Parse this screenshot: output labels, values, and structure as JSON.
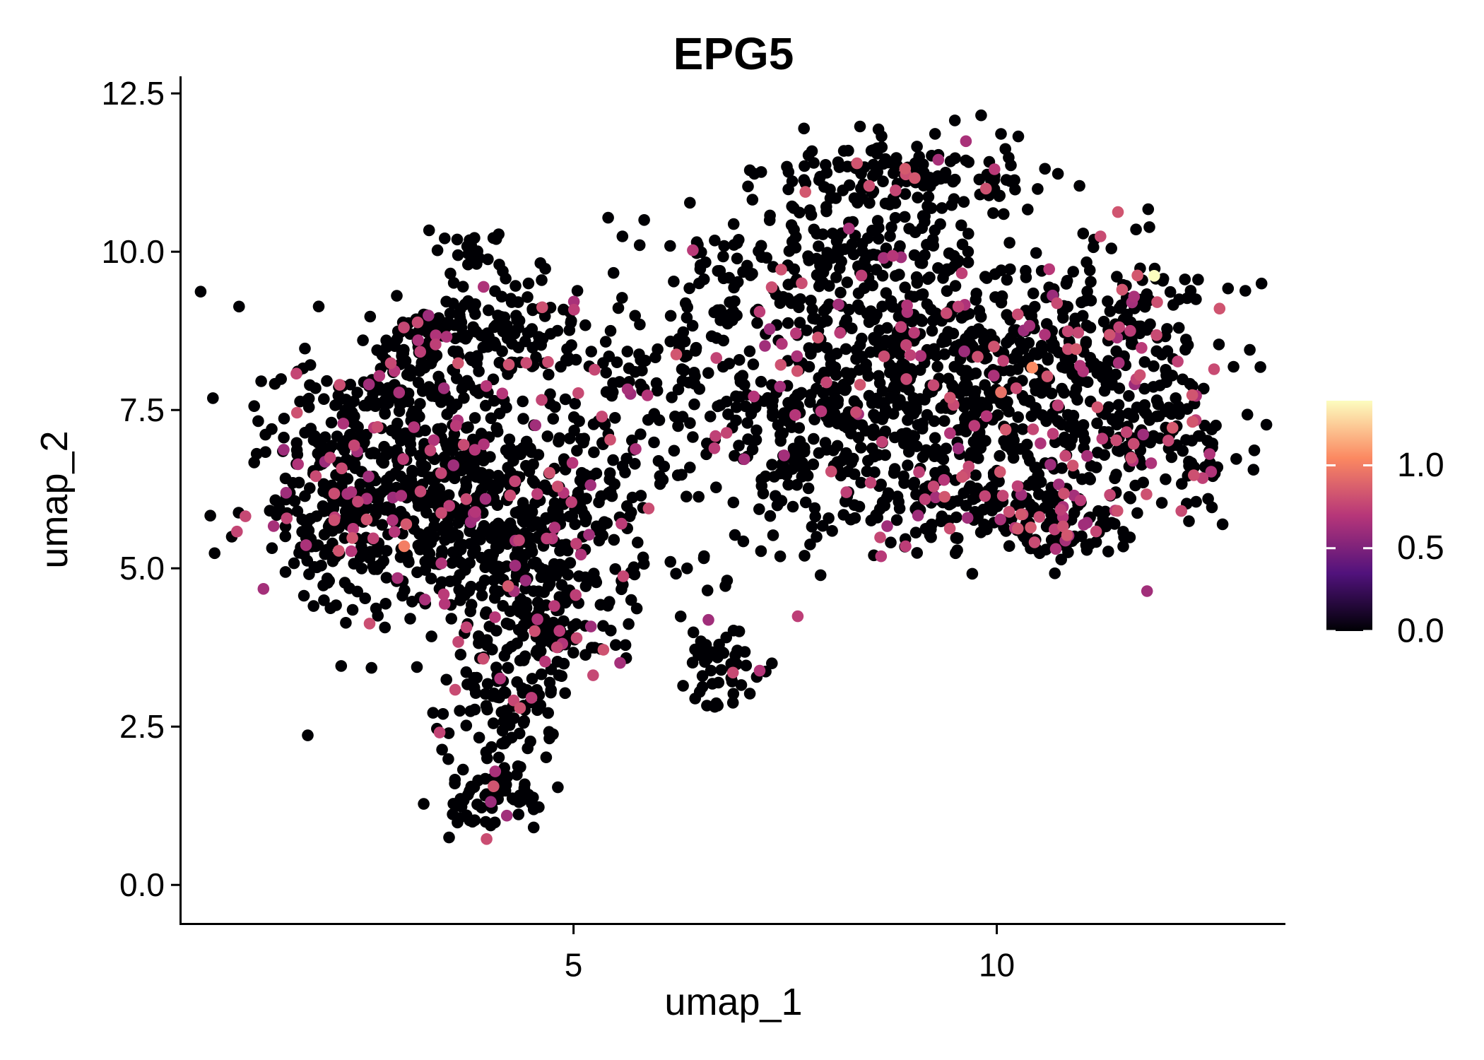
{
  "figure": {
    "title": "EPG5",
    "background": "#ffffff",
    "axis_color": "#000000",
    "text_color": "#000000"
  },
  "chart_data": {
    "type": "scatter",
    "title": "EPG5",
    "xlabel": "umap_1",
    "ylabel": "umap_2",
    "xlim": [
      0.37,
      13.41
    ],
    "ylim": [
      -0.6,
      12.77
    ],
    "grid": false,
    "x_ticks": [
      {
        "value": 5,
        "label": "5"
      },
      {
        "value": 10,
        "label": "10"
      }
    ],
    "y_ticks": [
      {
        "value": 12.5,
        "label": "12.5"
      },
      {
        "value": 10.0,
        "label": "10.0"
      },
      {
        "value": 7.5,
        "label": "7.5"
      },
      {
        "value": 5.0,
        "label": "5.0"
      },
      {
        "value": 2.5,
        "label": "2.5"
      },
      {
        "value": 0.0,
        "label": "0.0"
      }
    ],
    "legend": {
      "position": "right",
      "min": 0,
      "max": 1.39,
      "ticks": [
        {
          "value": 1.0,
          "label": "1.0"
        },
        {
          "value": 0.5,
          "label": "0.5"
        },
        {
          "value": 0.0,
          "label": "0.0"
        }
      ],
      "colormap": "magma",
      "colormap_anchors": [
        [
          0.0,
          "#000004"
        ],
        [
          0.25,
          "#51127c"
        ],
        [
          0.5,
          "#b63679"
        ],
        [
          0.75,
          "#fb8861"
        ],
        [
          1.0,
          "#fcfdbf"
        ]
      ]
    },
    "point_style": {
      "radius_px": 8.3,
      "zero_color": "#000004",
      "expressed_color": "#b63679",
      "expressed_value_range": [
        0.6,
        0.85
      ]
    },
    "clusters": [
      {
        "id": "left-core",
        "cx": 3.05,
        "cy": 6.35,
        "sx": 0.8,
        "sy": 0.95,
        "n": 500,
        "frac": 0.1
      },
      {
        "id": "left-lower-right",
        "cx": 4.35,
        "cy": 5.6,
        "sx": 0.65,
        "sy": 0.85,
        "n": 260,
        "frac": 0.1
      },
      {
        "id": "left-top-arc",
        "cx": 4.3,
        "cy": 8.65,
        "sx": 0.75,
        "sy": 0.5,
        "n": 130,
        "frac": 0.07
      },
      {
        "id": "left-ridge-a",
        "cx": 2.7,
        "cy": 7.9,
        "sx": 0.35,
        "sy": 0.35,
        "n": 60,
        "frac": 0.08
      },
      {
        "id": "left-ridge-b",
        "cx": 3.5,
        "cy": 8.6,
        "sx": 0.4,
        "sy": 0.35,
        "n": 70,
        "frac": 0.06
      },
      {
        "id": "left-top-knob",
        "cx": 3.85,
        "cy": 10.05,
        "sx": 0.22,
        "sy": 0.25,
        "n": 24,
        "frac": 0.0
      },
      {
        "id": "left-west",
        "cx": 2.1,
        "cy": 6.0,
        "sx": 0.45,
        "sy": 0.75,
        "n": 110,
        "frac": 0.09
      },
      {
        "id": "left-mid-low",
        "cx": 4.6,
        "cy": 4.15,
        "sx": 0.5,
        "sy": 0.65,
        "n": 160,
        "frac": 0.11
      },
      {
        "id": "left-tail",
        "cx": 4.1,
        "cy": 2.45,
        "sx": 0.33,
        "sy": 0.55,
        "n": 70,
        "frac": 0.06
      },
      {
        "id": "left-tail-tip",
        "cx": 4.0,
        "cy": 1.4,
        "sx": 0.38,
        "sy": 0.28,
        "n": 60,
        "frac": 0.05
      },
      {
        "id": "left-east",
        "cx": 5.5,
        "cy": 6.6,
        "sx": 0.5,
        "sy": 0.95,
        "n": 100,
        "frac": 0.1
      },
      {
        "id": "bridge",
        "cx": 6.6,
        "cy": 8.1,
        "sx": 0.65,
        "sy": 0.95,
        "n": 110,
        "frac": 0.09
      },
      {
        "id": "bridge-top",
        "cx": 6.7,
        "cy": 10.0,
        "sx": 0.35,
        "sy": 0.35,
        "n": 20,
        "frac": 0.05
      },
      {
        "id": "isolated-clump",
        "cx": 6.75,
        "cy": 3.45,
        "sx": 0.28,
        "sy": 0.33,
        "n": 50,
        "frac": 0.1
      },
      {
        "id": "clump-trail",
        "cx": 6.6,
        "cy": 4.9,
        "sx": 0.25,
        "sy": 0.45,
        "n": 8,
        "frac": 0.0
      },
      {
        "id": "right-core",
        "cx": 9.3,
        "cy": 7.9,
        "sx": 1.05,
        "sy": 1.0,
        "n": 560,
        "frac": 0.09
      },
      {
        "id": "right-top-band",
        "cx": 8.9,
        "cy": 11.15,
        "sx": 0.75,
        "sy": 0.33,
        "n": 150,
        "frac": 0.08
      },
      {
        "id": "right-upper-mid",
        "cx": 8.3,
        "cy": 9.7,
        "sx": 0.85,
        "sy": 0.65,
        "n": 170,
        "frac": 0.08
      },
      {
        "id": "right-wing",
        "cx": 11.25,
        "cy": 8.7,
        "sx": 0.75,
        "sy": 0.8,
        "n": 200,
        "frac": 0.1
      },
      {
        "id": "right-streak",
        "cx": 11.6,
        "cy": 9.0,
        "sx": 0.22,
        "sy": 0.4,
        "n": 16,
        "frac": 0.75
      },
      {
        "id": "right-far-low",
        "cx": 11.9,
        "cy": 6.95,
        "sx": 0.65,
        "sy": 0.55,
        "n": 130,
        "frac": 0.18
      },
      {
        "id": "right-bottom",
        "cx": 9.6,
        "cy": 5.95,
        "sx": 0.85,
        "sy": 0.45,
        "n": 150,
        "frac": 0.12
      },
      {
        "id": "right-se-edge",
        "cx": 10.7,
        "cy": 5.75,
        "sx": 0.5,
        "sy": 0.3,
        "n": 90,
        "frac": 0.25
      },
      {
        "id": "right-west-edge",
        "cx": 7.6,
        "cy": 7.0,
        "sx": 0.45,
        "sy": 0.85,
        "n": 110,
        "frac": 0.09
      },
      {
        "id": "top-mid-sparse",
        "cx": 5.9,
        "cy": 10.2,
        "sx": 0.3,
        "sy": 0.45,
        "n": 6,
        "frac": 0.0
      }
    ],
    "highlight_points": [
      {
        "x": 11.86,
        "y": 9.62,
        "value": 1.39
      },
      {
        "x": 3.0,
        "y": 5.35,
        "value": 1.0
      },
      {
        "x": 10.42,
        "y": 8.17,
        "value": 1.05
      },
      {
        "x": 10.05,
        "y": 7.78,
        "value": 0.95
      }
    ]
  }
}
